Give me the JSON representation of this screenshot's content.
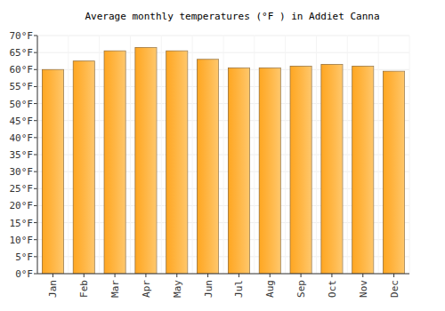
{
  "chart_data": {
    "type": "bar",
    "title": "Average monthly temperatures (°F ) in Addiet Canna",
    "categories": [
      "Jan",
      "Feb",
      "Mar",
      "Apr",
      "May",
      "Jun",
      "Jul",
      "Aug",
      "Sep",
      "Oct",
      "Nov",
      "Dec"
    ],
    "values": [
      60,
      62.5,
      65.5,
      66.5,
      65.5,
      63,
      60.5,
      60.5,
      61,
      61.5,
      61,
      59.5
    ],
    "color": "#ffb02e",
    "ylim": [
      0,
      70
    ],
    "yticks": [
      {
        "value": 0,
        "label": "0°F"
      },
      {
        "value": 5,
        "label": "5°F"
      },
      {
        "value": 10,
        "label": "10°F"
      },
      {
        "value": 15,
        "label": "15°F"
      },
      {
        "value": 20,
        "label": "20°F"
      },
      {
        "value": 25,
        "label": "25°F"
      },
      {
        "value": 30,
        "label": "30°F"
      },
      {
        "value": 35,
        "label": "35°F"
      },
      {
        "value": 40,
        "label": "40°F"
      },
      {
        "value": 45,
        "label": "45°F"
      },
      {
        "value": 50,
        "label": "50°F"
      },
      {
        "value": 55,
        "label": "55°F"
      },
      {
        "value": 60,
        "label": "60°F"
      },
      {
        "value": 65,
        "label": "65°F"
      },
      {
        "value": 70,
        "label": "70°F"
      }
    ],
    "grid": true
  }
}
